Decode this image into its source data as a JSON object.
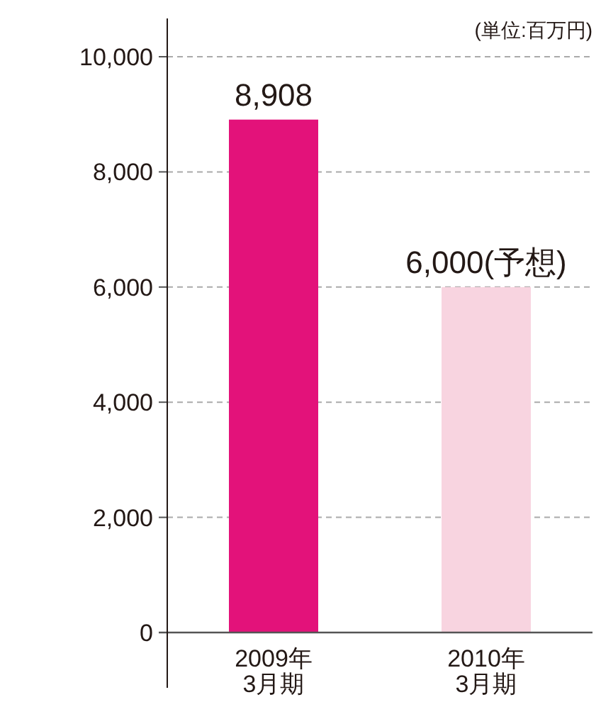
{
  "chart_data": {
    "type": "bar",
    "categories": [
      "2009年\n3月期",
      "2010年\n3月期"
    ],
    "values": [
      8908,
      6000
    ],
    "colors": [
      "#e3127a",
      "#f8d4e0"
    ],
    "value_labels": [
      "8,908",
      "6,000(予想)"
    ],
    "annotations": [
      "(単位:百万円)"
    ],
    "ylim": [
      0,
      10000
    ],
    "yticks": [
      {
        "value": 0,
        "label": "0"
      },
      {
        "value": 2000,
        "label": "2,000"
      },
      {
        "value": 4000,
        "label": "4,000"
      },
      {
        "value": 6000,
        "label": "6,000"
      },
      {
        "value": 8000,
        "label": "8,000"
      },
      {
        "value": 10000,
        "label": "10,000"
      }
    ],
    "grid": "y"
  }
}
